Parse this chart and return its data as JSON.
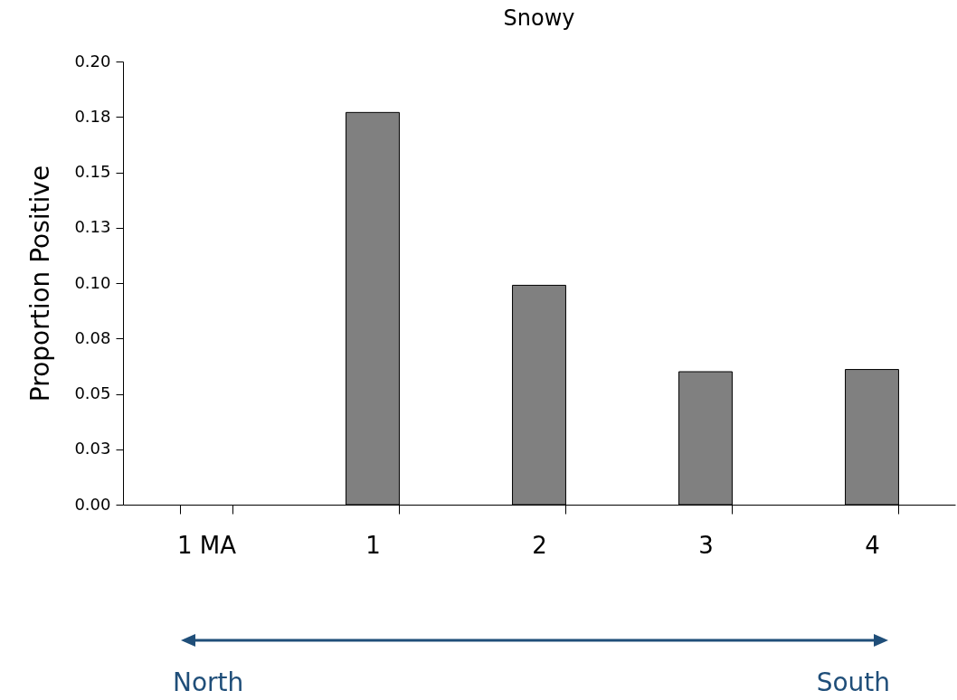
{
  "chart_data": {
    "type": "bar",
    "title": "Snowy",
    "ylabel": "Proportion Positive",
    "categories": [
      "1 MA",
      "1",
      "2",
      "3",
      "4"
    ],
    "values": [
      null,
      0.177,
      0.099,
      0.06,
      0.061
    ],
    "color": "#808080",
    "ylim": [
      0,
      0.2
    ],
    "yticks": [
      {
        "value": 0,
        "label": "0.00"
      },
      {
        "value": 0.025,
        "label": "0.03"
      },
      0.05,
      {
        "value": 0.075,
        "label": "0.08"
      },
      {
        "value": 0.1,
        "label": "0.10"
      },
      {
        "value": 0.125,
        "label": "0.13"
      },
      0.15,
      {
        "value": 0.175,
        "label": "0.18"
      },
      {
        "value": 0.2,
        "label": "0.20"
      }
    ],
    "grid": false,
    "legend": false,
    "annotations": [
      "North",
      "South"
    ]
  }
}
